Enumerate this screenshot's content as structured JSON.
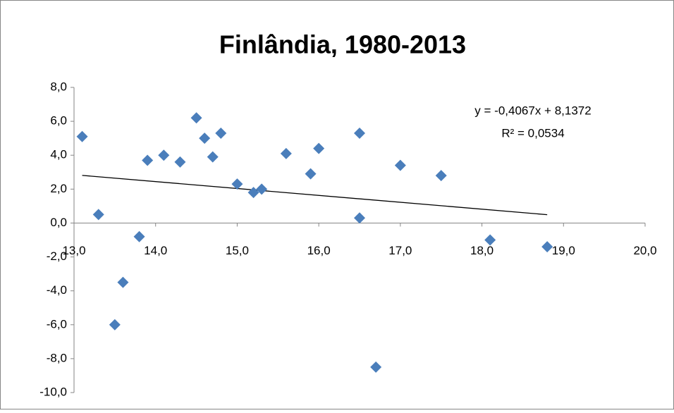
{
  "chart_data": {
    "type": "scatter",
    "title": "Finlândia, 1980-2013",
    "series": [
      {
        "color": "#4a7ebb",
        "x": [
          13.1,
          13.3,
          13.5,
          13.6,
          13.8,
          13.9,
          14.1,
          14.3,
          14.5,
          14.6,
          14.7,
          14.8,
          15.0,
          15.2,
          15.3,
          15.6,
          15.9,
          16.0,
          16.5,
          16.5,
          16.7,
          17.0,
          17.5,
          18.1,
          18.8
        ],
        "values": [
          5.1,
          0.5,
          -6.0,
          -3.5,
          -0.8,
          3.7,
          4.0,
          3.6,
          6.2,
          5.0,
          3.9,
          5.3,
          2.3,
          1.8,
          2.0,
          4.1,
          2.9,
          4.4,
          5.3,
          0.3,
          -8.5,
          3.4,
          2.8,
          -1.0,
          -1.4
        ]
      }
    ],
    "trendline": {
      "slope": -0.4067,
      "intercept": 8.1372,
      "color": "#000000",
      "equation": "y = -0,4067x + 8,1372",
      "r2_label": "R² = 0,0534"
    },
    "xlim": [
      13,
      20
    ],
    "xticks": [
      {
        "value": 13,
        "label": "13,0"
      },
      {
        "value": 14,
        "label": "14,0"
      },
      {
        "value": 15,
        "label": "15,0"
      },
      {
        "value": 16,
        "label": "16,0"
      },
      {
        "value": 17,
        "label": "17,0"
      },
      {
        "value": 18,
        "label": "18,0"
      },
      {
        "value": 19,
        "label": "19,0"
      },
      {
        "value": 20,
        "label": "20,0"
      }
    ],
    "ylim": [
      -10,
      8
    ],
    "yticks": [
      {
        "value": 8,
        "label": "8,0"
      },
      {
        "value": 6,
        "label": "6,0"
      },
      {
        "value": 4,
        "label": "4,0"
      },
      {
        "value": 2,
        "label": "2,0"
      },
      {
        "value": 0,
        "label": "0,0"
      },
      {
        "value": -2,
        "label": "-2,0"
      },
      {
        "value": -4,
        "label": "-4,0"
      },
      {
        "value": -6,
        "label": "-6,0"
      },
      {
        "value": -8,
        "label": "-8,0"
      },
      {
        "value": -10,
        "label": "-10,0"
      }
    ],
    "grid": false
  }
}
